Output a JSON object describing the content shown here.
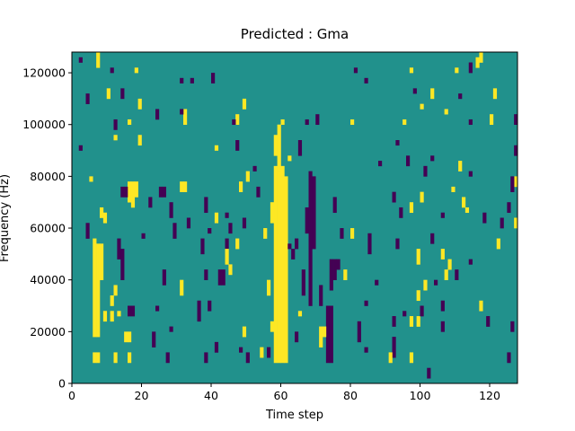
{
  "chart_data": {
    "type": "heatmap",
    "title": "Predicted : Gma",
    "x_label": "Time step",
    "y_label": "Frequency (Hz)",
    "xlim": [
      0,
      128
    ],
    "ylim": [
      0,
      128000
    ],
    "xticks": [
      0,
      20,
      40,
      60,
      80,
      100,
      120
    ],
    "yticks": [
      0,
      20000,
      40000,
      60000,
      80000,
      100000,
      120000
    ],
    "background_color": "#21918c",
    "colors": {
      "low": "#440154",
      "high": "#fde725"
    },
    "cells": [
      [
        7,
        122000,
        128000,
        1
      ],
      [
        2,
        124000,
        126000,
        -1
      ],
      [
        11,
        120000,
        122000,
        -1
      ],
      [
        18,
        120000,
        122000,
        1
      ],
      [
        31,
        116000,
        118000,
        -1
      ],
      [
        34,
        116000,
        118000,
        -1
      ],
      [
        40,
        116000,
        120000,
        -1
      ],
      [
        81,
        120000,
        122000,
        -1
      ],
      [
        84,
        116000,
        118000,
        -1
      ],
      [
        97,
        120000,
        122000,
        1
      ],
      [
        110,
        120000,
        122000,
        1
      ],
      [
        114,
        120000,
        124000,
        -1
      ],
      [
        116,
        122000,
        126000,
        1
      ],
      [
        117,
        124000,
        128000,
        1
      ],
      [
        10,
        110000,
        114000,
        1
      ],
      [
        14,
        110000,
        114000,
        -1
      ],
      [
        103,
        110000,
        114000,
        1
      ],
      [
        98,
        112000,
        114000,
        -1
      ],
      [
        121,
        110000,
        114000,
        1
      ],
      [
        111,
        110000,
        112000,
        -1
      ],
      [
        4,
        108000,
        112000,
        -1
      ],
      [
        19,
        106000,
        110000,
        1
      ],
      [
        49,
        106000,
        110000,
        1
      ],
      [
        24,
        102000,
        106000,
        -1
      ],
      [
        32,
        100000,
        106000,
        1
      ],
      [
        47,
        100000,
        104000,
        1
      ],
      [
        100,
        106000,
        108000,
        1
      ],
      [
        107,
        104000,
        106000,
        1
      ],
      [
        12,
        98000,
        102000,
        -1
      ],
      [
        16,
        100000,
        102000,
        1
      ],
      [
        46,
        100000,
        102000,
        -1
      ],
      [
        60,
        100000,
        102000,
        1
      ],
      [
        70,
        100000,
        104000,
        -1
      ],
      [
        67,
        100000,
        102000,
        -1
      ],
      [
        80,
        100000,
        102000,
        1
      ],
      [
        95,
        100000,
        102000,
        1
      ],
      [
        120,
        100000,
        104000,
        1
      ],
      [
        127,
        100000,
        104000,
        -1
      ],
      [
        114,
        100000,
        102000,
        -1
      ],
      [
        12,
        94000,
        96000,
        1
      ],
      [
        19,
        92000,
        96000,
        1
      ],
      [
        31,
        104000,
        106000,
        -1
      ],
      [
        2,
        90000,
        92000,
        -1
      ],
      [
        58,
        88000,
        96000,
        1
      ],
      [
        59,
        82000,
        100000,
        1
      ],
      [
        65,
        88000,
        94000,
        -1
      ],
      [
        62,
        86000,
        88000,
        1
      ],
      [
        41,
        90000,
        92000,
        1
      ],
      [
        47,
        90000,
        94000,
        -1
      ],
      [
        127,
        88000,
        92000,
        -1
      ],
      [
        93,
        92000,
        94000,
        -1
      ],
      [
        96,
        84000,
        88000,
        -1
      ],
      [
        88,
        84000,
        86000,
        -1
      ],
      [
        58,
        8000,
        84000,
        1
      ],
      [
        59,
        8000,
        82000,
        1
      ],
      [
        60,
        8000,
        84000,
        1
      ],
      [
        61,
        8000,
        80000,
        1
      ],
      [
        57,
        20000,
        24000,
        1
      ],
      [
        56,
        34000,
        40000,
        1
      ],
      [
        55,
        56000,
        60000,
        1
      ],
      [
        57,
        62000,
        70000,
        1
      ],
      [
        68,
        30000,
        82000,
        -1
      ],
      [
        69,
        52000,
        80000,
        -1
      ],
      [
        67,
        58000,
        68000,
        -1
      ],
      [
        66,
        34000,
        44000,
        -1
      ],
      [
        73,
        8000,
        30000,
        -1
      ],
      [
        74,
        8000,
        30000,
        -1
      ],
      [
        74,
        36000,
        48000,
        -1
      ],
      [
        71,
        30000,
        38000,
        -1
      ],
      [
        75,
        40000,
        48000,
        -1
      ],
      [
        6,
        18000,
        56000,
        1
      ],
      [
        7,
        18000,
        54000,
        1
      ],
      [
        8,
        40000,
        54000,
        1
      ],
      [
        7,
        8000,
        12000,
        1
      ],
      [
        6,
        8000,
        12000,
        1
      ],
      [
        8,
        64000,
        68000,
        1
      ],
      [
        9,
        62000,
        66000,
        1
      ],
      [
        5,
        78000,
        80000,
        1
      ],
      [
        4,
        56000,
        62000,
        -1
      ],
      [
        16,
        70000,
        78000,
        1
      ],
      [
        17,
        68000,
        78000,
        1
      ],
      [
        18,
        72000,
        78000,
        1
      ],
      [
        15,
        72000,
        76000,
        -1
      ],
      [
        14,
        72000,
        76000,
        -1
      ],
      [
        16,
        26000,
        30000,
        -1
      ],
      [
        17,
        26000,
        30000,
        -1
      ],
      [
        15,
        16000,
        20000,
        1
      ],
      [
        16,
        16000,
        20000,
        1
      ],
      [
        12,
        34000,
        38000,
        1
      ],
      [
        11,
        30000,
        34000,
        1
      ],
      [
        9,
        24000,
        28000,
        1
      ],
      [
        11,
        24000,
        28000,
        1
      ],
      [
        13,
        26000,
        28000,
        1
      ],
      [
        12,
        8000,
        12000,
        1
      ],
      [
        16,
        8000,
        12000,
        1
      ],
      [
        13,
        48000,
        56000,
        -1
      ],
      [
        14,
        40000,
        52000,
        -1
      ],
      [
        25,
        72000,
        76000,
        -1
      ],
      [
        26,
        72000,
        76000,
        -1
      ],
      [
        31,
        74000,
        78000,
        1
      ],
      [
        32,
        74000,
        78000,
        1
      ],
      [
        23,
        14000,
        20000,
        -1
      ],
      [
        24,
        28000,
        30000,
        -1
      ],
      [
        28,
        20000,
        22000,
        -1
      ],
      [
        36,
        24000,
        32000,
        -1
      ],
      [
        39,
        28000,
        32000,
        -1
      ],
      [
        38,
        40000,
        44000,
        -1
      ],
      [
        42,
        38000,
        44000,
        -1
      ],
      [
        43,
        38000,
        44000,
        -1
      ],
      [
        45,
        42000,
        46000,
        1
      ],
      [
        49,
        60000,
        64000,
        -1
      ],
      [
        44,
        52000,
        56000,
        -1
      ],
      [
        37,
        50000,
        56000,
        -1
      ],
      [
        52,
        82000,
        84000,
        -1
      ],
      [
        50,
        78000,
        82000,
        1
      ],
      [
        48,
        74000,
        78000,
        1
      ],
      [
        53,
        72000,
        76000,
        -1
      ],
      [
        47,
        52000,
        56000,
        1
      ],
      [
        54,
        10000,
        14000,
        1
      ],
      [
        50,
        8000,
        12000,
        -1
      ],
      [
        49,
        18000,
        22000,
        1
      ],
      [
        62,
        52000,
        54000,
        -1
      ],
      [
        63,
        48000,
        52000,
        -1
      ],
      [
        64,
        52000,
        56000,
        -1
      ],
      [
        71,
        14000,
        22000,
        1
      ],
      [
        72,
        18000,
        22000,
        1
      ],
      [
        76,
        44000,
        48000,
        -1
      ],
      [
        77,
        56000,
        60000,
        -1
      ],
      [
        78,
        40000,
        44000,
        1
      ],
      [
        82,
        16000,
        24000,
        -1
      ],
      [
        84,
        30000,
        32000,
        -1
      ],
      [
        85,
        50000,
        58000,
        -1
      ],
      [
        87,
        38000,
        40000,
        -1
      ],
      [
        84,
        12000,
        14000,
        -1
      ],
      [
        75,
        66000,
        72000,
        -1
      ],
      [
        80,
        56000,
        60000,
        1
      ],
      [
        92,
        22000,
        26000,
        -1
      ],
      [
        92,
        10000,
        18000,
        -1
      ],
      [
        91,
        8000,
        12000,
        1
      ],
      [
        93,
        52000,
        56000,
        -1
      ],
      [
        94,
        64000,
        68000,
        -1
      ],
      [
        92,
        70000,
        74000,
        -1
      ],
      [
        99,
        22000,
        26000,
        1
      ],
      [
        97,
        22000,
        26000,
        1
      ],
      [
        100,
        26000,
        30000,
        -1
      ],
      [
        99,
        32000,
        36000,
        1
      ],
      [
        101,
        36000,
        40000,
        1
      ],
      [
        99,
        46000,
        52000,
        1
      ],
      [
        97,
        66000,
        70000,
        1
      ],
      [
        100,
        70000,
        74000,
        1
      ],
      [
        106,
        64000,
        66000,
        -1
      ],
      [
        103,
        54000,
        58000,
        -1
      ],
      [
        106,
        48000,
        52000,
        1
      ],
      [
        107,
        40000,
        44000,
        1
      ],
      [
        104,
        38000,
        40000,
        -1
      ],
      [
        106,
        28000,
        32000,
        -1
      ],
      [
        106,
        20000,
        24000,
        -1
      ],
      [
        102,
        2000,
        6000,
        -1
      ],
      [
        97,
        8000,
        12000,
        1
      ],
      [
        95,
        26000,
        28000,
        -1
      ],
      [
        112,
        68000,
        72000,
        1
      ],
      [
        109,
        74000,
        76000,
        1
      ],
      [
        113,
        66000,
        68000,
        1
      ],
      [
        118,
        62000,
        66000,
        -1
      ],
      [
        123,
        60000,
        64000,
        -1
      ],
      [
        122,
        52000,
        56000,
        1
      ],
      [
        117,
        28000,
        32000,
        1
      ],
      [
        119,
        22000,
        26000,
        -1
      ],
      [
        126,
        20000,
        24000,
        -1
      ],
      [
        127,
        60000,
        64000,
        1
      ],
      [
        125,
        66000,
        70000,
        -1
      ],
      [
        127,
        76000,
        80000,
        1
      ],
      [
        126,
        74000,
        80000,
        -1
      ],
      [
        114,
        80000,
        82000,
        -1
      ],
      [
        111,
        82000,
        86000,
        1
      ],
      [
        103,
        86000,
        88000,
        -1
      ],
      [
        101,
        80000,
        84000,
        -1
      ],
      [
        114,
        46000,
        48000,
        -1
      ],
      [
        110,
        40000,
        44000,
        -1
      ],
      [
        108,
        44000,
        48000,
        1
      ],
      [
        125,
        8000,
        12000,
        -1
      ],
      [
        27,
        8000,
        12000,
        -1
      ],
      [
        38,
        8000,
        12000,
        -1
      ],
      [
        41,
        12000,
        16000,
        -1
      ],
      [
        48,
        12000,
        14000,
        -1
      ],
      [
        56,
        10000,
        14000,
        -1
      ],
      [
        64,
        16000,
        20000,
        -1
      ],
      [
        65,
        26000,
        28000,
        1
      ],
      [
        41,
        62000,
        66000,
        1
      ],
      [
        39,
        58000,
        60000,
        -1
      ],
      [
        44,
        46000,
        52000,
        1
      ],
      [
        44,
        64000,
        66000,
        -1
      ],
      [
        28,
        64000,
        70000,
        -1
      ],
      [
        38,
        66000,
        72000,
        -1
      ],
      [
        45,
        58000,
        62000,
        -1
      ],
      [
        22,
        68000,
        72000,
        -1
      ],
      [
        20,
        56000,
        58000,
        -1
      ],
      [
        26,
        38000,
        44000,
        -1
      ],
      [
        31,
        34000,
        40000,
        1
      ],
      [
        29,
        56000,
        62000,
        -1
      ],
      [
        33,
        60000,
        64000,
        -1
      ]
    ]
  }
}
